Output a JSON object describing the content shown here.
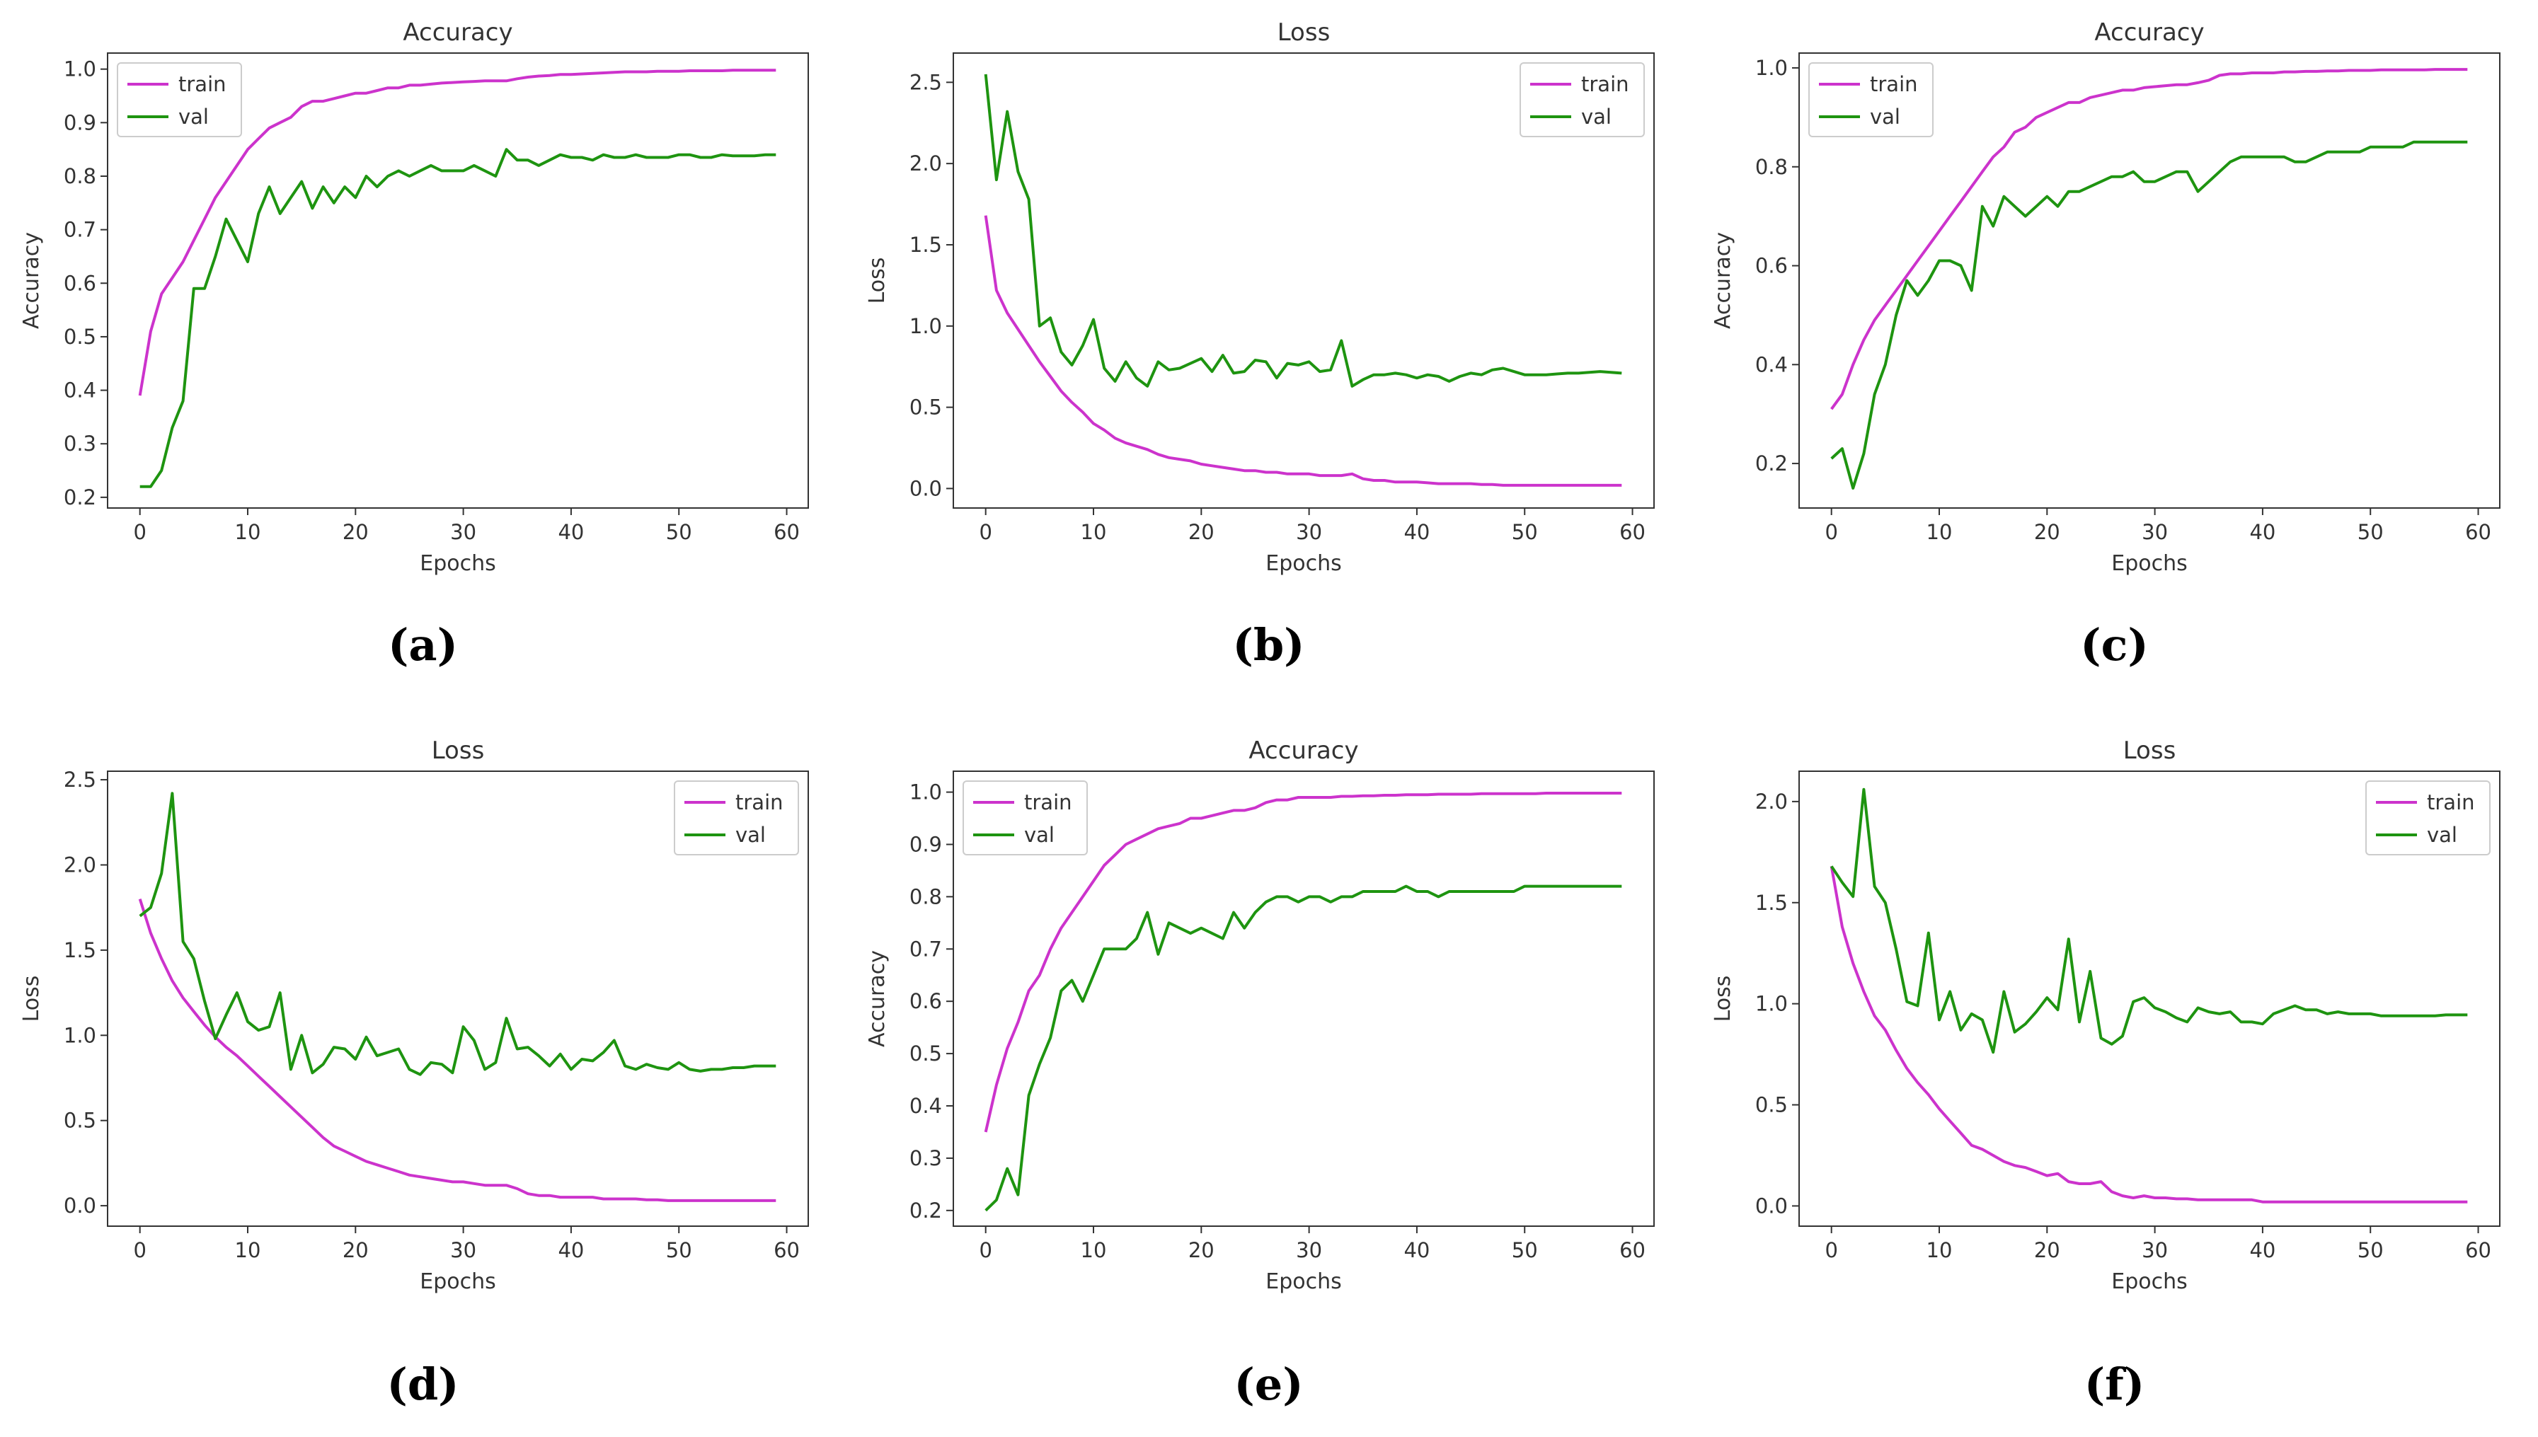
{
  "colors": {
    "train": "#cc33cc",
    "val": "#1e9410",
    "axis": "#333333"
  },
  "chart_data": [
    {
      "type": "line",
      "panel": "a",
      "caption": "(a)",
      "title": "Accuracy",
      "xlabel": "Epochs",
      "ylabel": "Accuracy",
      "xlim": [
        -3.0,
        62.0
      ],
      "ylim": [
        0.18,
        1.03
      ],
      "xticks": [
        0,
        10,
        20,
        30,
        40,
        50,
        60
      ],
      "yticks": [
        0.2,
        0.3,
        0.4,
        0.5,
        0.6,
        0.7,
        0.8,
        0.9,
        1.0
      ],
      "ytick_labels": [
        "0.2",
        "0.3",
        "0.4",
        "0.5",
        "0.6",
        "0.7",
        "0.8",
        "0.9",
        "1.0"
      ],
      "legend": "top-left",
      "series": [
        {
          "name": "train",
          "values": [
            0.39,
            0.51,
            0.58,
            0.61,
            0.64,
            0.68,
            0.72,
            0.76,
            0.79,
            0.82,
            0.85,
            0.87,
            0.89,
            0.9,
            0.91,
            0.93,
            0.94,
            0.94,
            0.945,
            0.95,
            0.955,
            0.955,
            0.96,
            0.965,
            0.965,
            0.97,
            0.97,
            0.972,
            0.974,
            0.975,
            0.976,
            0.977,
            0.978,
            0.978,
            0.978,
            0.982,
            0.985,
            0.987,
            0.988,
            0.99,
            0.99,
            0.991,
            0.992,
            0.993,
            0.994,
            0.995,
            0.995,
            0.995,
            0.996,
            0.996,
            0.996,
            0.997,
            0.997,
            0.997,
            0.997,
            0.998,
            0.998,
            0.998,
            0.998,
            0.998
          ]
        },
        {
          "name": "val",
          "values": [
            0.22,
            0.22,
            0.25,
            0.33,
            0.38,
            0.59,
            0.59,
            0.65,
            0.72,
            0.68,
            0.64,
            0.73,
            0.78,
            0.73,
            0.76,
            0.79,
            0.74,
            0.78,
            0.75,
            0.78,
            0.76,
            0.8,
            0.78,
            0.8,
            0.81,
            0.8,
            0.81,
            0.82,
            0.81,
            0.81,
            0.81,
            0.82,
            0.81,
            0.8,
            0.85,
            0.83,
            0.83,
            0.82,
            0.83,
            0.84,
            0.835,
            0.835,
            0.83,
            0.84,
            0.835,
            0.835,
            0.84,
            0.835,
            0.835,
            0.835,
            0.84,
            0.84,
            0.835,
            0.835,
            0.84,
            0.838,
            0.838,
            0.838,
            0.84,
            0.84
          ]
        }
      ]
    },
    {
      "type": "line",
      "panel": "b",
      "caption": "(b)",
      "title": "Loss",
      "xlabel": "Epochs",
      "ylabel": "Loss",
      "xlim": [
        -3.0,
        62.0
      ],
      "ylim": [
        -0.12,
        2.68
      ],
      "xticks": [
        0,
        10,
        20,
        30,
        40,
        50,
        60
      ],
      "yticks": [
        0.0,
        0.5,
        1.0,
        1.5,
        2.0,
        2.5
      ],
      "ytick_labels": [
        "0.0",
        "0.5",
        "1.0",
        "1.5",
        "2.0",
        "2.5"
      ],
      "legend": "top-right",
      "series": [
        {
          "name": "train",
          "values": [
            1.68,
            1.22,
            1.08,
            0.98,
            0.88,
            0.78,
            0.69,
            0.6,
            0.53,
            0.47,
            0.4,
            0.36,
            0.31,
            0.28,
            0.26,
            0.24,
            0.21,
            0.19,
            0.18,
            0.17,
            0.15,
            0.14,
            0.13,
            0.12,
            0.11,
            0.11,
            0.1,
            0.1,
            0.09,
            0.09,
            0.09,
            0.08,
            0.08,
            0.08,
            0.09,
            0.06,
            0.05,
            0.05,
            0.04,
            0.04,
            0.04,
            0.035,
            0.03,
            0.03,
            0.03,
            0.03,
            0.025,
            0.025,
            0.02,
            0.02,
            0.02,
            0.02,
            0.02,
            0.02,
            0.02,
            0.02,
            0.02,
            0.02,
            0.02,
            0.02
          ]
        },
        {
          "name": "val",
          "values": [
            2.55,
            1.9,
            2.32,
            1.95,
            1.78,
            1.0,
            1.05,
            0.84,
            0.76,
            0.88,
            1.04,
            0.74,
            0.66,
            0.78,
            0.68,
            0.63,
            0.78,
            0.73,
            0.74,
            0.77,
            0.8,
            0.72,
            0.82,
            0.71,
            0.72,
            0.79,
            0.78,
            0.68,
            0.77,
            0.76,
            0.78,
            0.72,
            0.73,
            0.91,
            0.63,
            0.67,
            0.7,
            0.7,
            0.71,
            0.7,
            0.68,
            0.7,
            0.69,
            0.66,
            0.69,
            0.71,
            0.7,
            0.73,
            0.74,
            0.72,
            0.7,
            0.7,
            0.7,
            0.705,
            0.71,
            0.71,
            0.715,
            0.72,
            0.715,
            0.71
          ]
        }
      ]
    },
    {
      "type": "line",
      "panel": "c",
      "caption": "(c)",
      "title": "Accuracy",
      "xlabel": "Epochs",
      "ylabel": "Accuracy",
      "xlim": [
        -3.0,
        62.0
      ],
      "ylim": [
        0.11,
        1.03
      ],
      "xticks": [
        0,
        10,
        20,
        30,
        40,
        50,
        60
      ],
      "yticks": [
        0.2,
        0.4,
        0.6,
        0.8,
        1.0
      ],
      "ytick_labels": [
        "0.2",
        "0.4",
        "0.6",
        "0.8",
        "1.0"
      ],
      "legend": "top-left",
      "series": [
        {
          "name": "train",
          "values": [
            0.31,
            0.34,
            0.4,
            0.45,
            0.49,
            0.52,
            0.55,
            0.58,
            0.61,
            0.64,
            0.67,
            0.7,
            0.73,
            0.76,
            0.79,
            0.82,
            0.84,
            0.87,
            0.88,
            0.9,
            0.91,
            0.92,
            0.93,
            0.93,
            0.94,
            0.945,
            0.95,
            0.955,
            0.955,
            0.96,
            0.962,
            0.964,
            0.966,
            0.966,
            0.97,
            0.975,
            0.985,
            0.988,
            0.988,
            0.99,
            0.99,
            0.99,
            0.992,
            0.992,
            0.993,
            0.993,
            0.994,
            0.994,
            0.995,
            0.995,
            0.995,
            0.996,
            0.996,
            0.996,
            0.996,
            0.996,
            0.997,
            0.997,
            0.997,
            0.997
          ]
        },
        {
          "name": "val",
          "values": [
            0.21,
            0.23,
            0.15,
            0.22,
            0.34,
            0.4,
            0.5,
            0.57,
            0.54,
            0.57,
            0.61,
            0.61,
            0.6,
            0.55,
            0.72,
            0.68,
            0.74,
            0.72,
            0.7,
            0.72,
            0.74,
            0.72,
            0.75,
            0.75,
            0.76,
            0.77,
            0.78,
            0.78,
            0.79,
            0.77,
            0.77,
            0.78,
            0.79,
            0.79,
            0.75,
            0.77,
            0.79,
            0.81,
            0.82,
            0.82,
            0.82,
            0.82,
            0.82,
            0.81,
            0.81,
            0.82,
            0.83,
            0.83,
            0.83,
            0.83,
            0.84,
            0.84,
            0.84,
            0.84,
            0.85,
            0.85,
            0.85,
            0.85,
            0.85,
            0.85
          ]
        }
      ]
    },
    {
      "type": "line",
      "panel": "d",
      "caption": "(d)",
      "title": "Loss",
      "xlabel": "Epochs",
      "ylabel": "Loss",
      "xlim": [
        -3.0,
        62.0
      ],
      "ylim": [
        -0.12,
        2.55
      ],
      "xticks": [
        0,
        10,
        20,
        30,
        40,
        50,
        60
      ],
      "yticks": [
        0.0,
        0.5,
        1.0,
        1.5,
        2.0,
        2.5
      ],
      "ytick_labels": [
        "0.0",
        "0.5",
        "1.0",
        "1.5",
        "2.0",
        "2.5"
      ],
      "legend": "top-right",
      "series": [
        {
          "name": "train",
          "values": [
            1.8,
            1.6,
            1.45,
            1.32,
            1.22,
            1.14,
            1.06,
            0.99,
            0.93,
            0.88,
            0.82,
            0.76,
            0.7,
            0.64,
            0.58,
            0.52,
            0.46,
            0.4,
            0.35,
            0.32,
            0.29,
            0.26,
            0.24,
            0.22,
            0.2,
            0.18,
            0.17,
            0.16,
            0.15,
            0.14,
            0.14,
            0.13,
            0.12,
            0.12,
            0.12,
            0.1,
            0.07,
            0.06,
            0.06,
            0.05,
            0.05,
            0.05,
            0.05,
            0.04,
            0.04,
            0.04,
            0.04,
            0.035,
            0.035,
            0.03,
            0.03,
            0.03,
            0.03,
            0.03,
            0.03,
            0.03,
            0.03,
            0.03,
            0.03,
            0.03
          ]
        },
        {
          "name": "val",
          "values": [
            1.7,
            1.75,
            1.95,
            2.42,
            1.55,
            1.45,
            1.2,
            0.98,
            1.12,
            1.25,
            1.08,
            1.03,
            1.05,
            1.25,
            0.8,
            1.0,
            0.78,
            0.83,
            0.93,
            0.92,
            0.86,
            0.99,
            0.88,
            0.9,
            0.92,
            0.8,
            0.77,
            0.84,
            0.83,
            0.78,
            1.05,
            0.97,
            0.8,
            0.84,
            1.1,
            0.92,
            0.93,
            0.88,
            0.82,
            0.89,
            0.8,
            0.86,
            0.85,
            0.9,
            0.97,
            0.82,
            0.8,
            0.83,
            0.81,
            0.8,
            0.84,
            0.8,
            0.79,
            0.8,
            0.8,
            0.81,
            0.81,
            0.82,
            0.82,
            0.82
          ]
        }
      ]
    },
    {
      "type": "line",
      "panel": "e",
      "caption": "(e)",
      "title": "Accuracy",
      "xlabel": "Epochs",
      "ylabel": "Accuracy",
      "xlim": [
        -3.0,
        62.0
      ],
      "ylim": [
        0.17,
        1.04
      ],
      "xticks": [
        0,
        10,
        20,
        30,
        40,
        50,
        60
      ],
      "yticks": [
        0.2,
        0.3,
        0.4,
        0.5,
        0.6,
        0.7,
        0.8,
        0.9,
        1.0
      ],
      "ytick_labels": [
        "0.2",
        "0.3",
        "0.4",
        "0.5",
        "0.6",
        "0.7",
        "0.8",
        "0.9",
        "1.0"
      ],
      "legend": "top-left",
      "series": [
        {
          "name": "train",
          "values": [
            0.35,
            0.44,
            0.51,
            0.56,
            0.62,
            0.65,
            0.7,
            0.74,
            0.77,
            0.8,
            0.83,
            0.86,
            0.88,
            0.9,
            0.91,
            0.92,
            0.93,
            0.935,
            0.94,
            0.95,
            0.95,
            0.955,
            0.96,
            0.965,
            0.965,
            0.97,
            0.98,
            0.985,
            0.985,
            0.99,
            0.99,
            0.99,
            0.99,
            0.992,
            0.992,
            0.993,
            0.993,
            0.994,
            0.994,
            0.995,
            0.995,
            0.995,
            0.996,
            0.996,
            0.996,
            0.996,
            0.997,
            0.997,
            0.997,
            0.997,
            0.997,
            0.997,
            0.998,
            0.998,
            0.998,
            0.998,
            0.998,
            0.998,
            0.998,
            0.998
          ]
        },
        {
          "name": "val",
          "values": [
            0.2,
            0.22,
            0.28,
            0.23,
            0.42,
            0.48,
            0.53,
            0.62,
            0.64,
            0.6,
            0.65,
            0.7,
            0.7,
            0.7,
            0.72,
            0.77,
            0.69,
            0.75,
            0.74,
            0.73,
            0.74,
            0.73,
            0.72,
            0.77,
            0.74,
            0.77,
            0.79,
            0.8,
            0.8,
            0.79,
            0.8,
            0.8,
            0.79,
            0.8,
            0.8,
            0.81,
            0.81,
            0.81,
            0.81,
            0.82,
            0.81,
            0.81,
            0.8,
            0.81,
            0.81,
            0.81,
            0.81,
            0.81,
            0.81,
            0.81,
            0.82,
            0.82,
            0.82,
            0.82,
            0.82,
            0.82,
            0.82,
            0.82,
            0.82,
            0.82
          ]
        }
      ]
    },
    {
      "type": "line",
      "panel": "f",
      "caption": "(f)",
      "title": "Loss",
      "xlabel": "Epochs",
      "ylabel": "Loss",
      "xlim": [
        -3.0,
        62.0
      ],
      "ylim": [
        -0.1,
        2.15
      ],
      "xticks": [
        0,
        10,
        20,
        30,
        40,
        50,
        60
      ],
      "yticks": [
        0.0,
        0.5,
        1.0,
        1.5,
        2.0
      ],
      "ytick_labels": [
        "0.0",
        "0.5",
        "1.0",
        "1.5",
        "2.0"
      ],
      "legend": "top-right",
      "series": [
        {
          "name": "train",
          "values": [
            1.68,
            1.38,
            1.2,
            1.06,
            0.94,
            0.87,
            0.77,
            0.68,
            0.61,
            0.55,
            0.48,
            0.42,
            0.36,
            0.3,
            0.28,
            0.25,
            0.22,
            0.2,
            0.19,
            0.17,
            0.15,
            0.16,
            0.12,
            0.11,
            0.11,
            0.12,
            0.07,
            0.05,
            0.04,
            0.05,
            0.04,
            0.04,
            0.035,
            0.035,
            0.03,
            0.03,
            0.03,
            0.03,
            0.03,
            0.03,
            0.02,
            0.02,
            0.02,
            0.02,
            0.02,
            0.02,
            0.02,
            0.02,
            0.02,
            0.02,
            0.02,
            0.02,
            0.02,
            0.02,
            0.02,
            0.02,
            0.02,
            0.02,
            0.02,
            0.02
          ]
        },
        {
          "name": "val",
          "values": [
            1.68,
            1.6,
            1.53,
            2.06,
            1.58,
            1.5,
            1.27,
            1.01,
            0.99,
            1.35,
            0.92,
            1.06,
            0.87,
            0.95,
            0.92,
            0.76,
            1.06,
            0.86,
            0.9,
            0.96,
            1.03,
            0.97,
            1.32,
            0.91,
            1.16,
            0.83,
            0.8,
            0.84,
            1.01,
            1.03,
            0.98,
            0.96,
            0.93,
            0.91,
            0.98,
            0.96,
            0.95,
            0.96,
            0.91,
            0.91,
            0.9,
            0.95,
            0.97,
            0.99,
            0.97,
            0.97,
            0.95,
            0.96,
            0.95,
            0.95,
            0.95,
            0.94,
            0.94,
            0.94,
            0.94,
            0.94,
            0.94,
            0.945,
            0.945,
            0.945
          ]
        }
      ]
    }
  ]
}
